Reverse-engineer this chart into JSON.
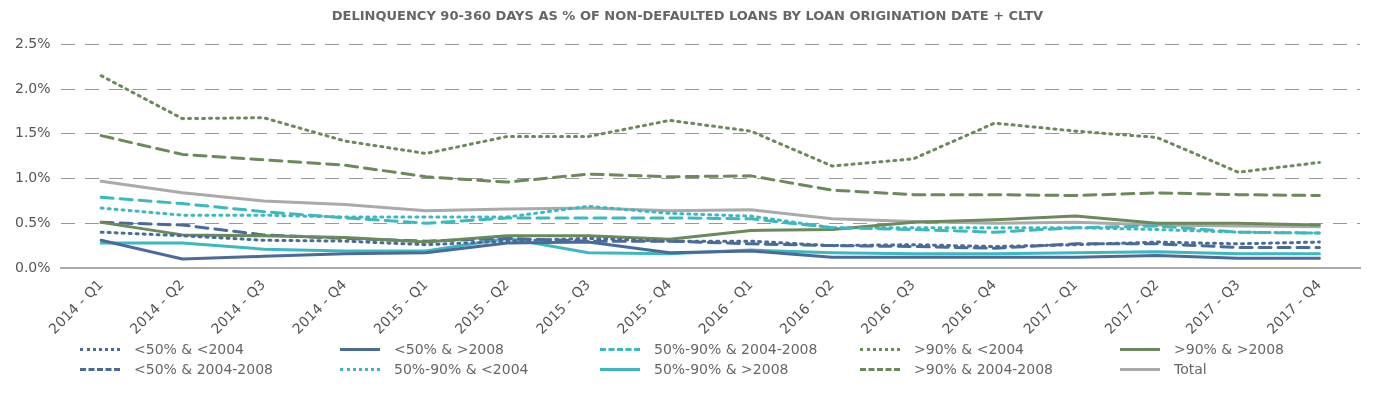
{
  "chart_data": {
    "type": "line",
    "title": "DELINQUENCY 90-360 DAYS AS % OF NON-DEFAULTED LOANS BY LOAN ORIGINATION DATE + CLTV",
    "categories": [
      "2014 - Q1",
      "2014 - Q2",
      "2014 - Q3",
      "2014 - Q4",
      "2015 - Q1",
      "2015 - Q2",
      "2015 - Q3",
      "2015 - Q4",
      "2016 - Q1",
      "2016 - Q2",
      "2016 - Q3",
      "2016 - Q4",
      "2017 - Q1",
      "2017 - Q2",
      "2017 - Q3",
      "2017 - Q4"
    ],
    "ylim": [
      0,
      2.5
    ],
    "yticks": [
      {
        "value": 0,
        "label": "0.0%"
      },
      {
        "value": 0.5,
        "label": "0.5%"
      },
      {
        "value": 1,
        "label": "1.0%"
      },
      {
        "value": 1.5,
        "label": "1.5%"
      },
      {
        "value": 2,
        "label": "2.0%"
      },
      {
        "value": 2.5,
        "label": "2.5%"
      }
    ],
    "grid": "y",
    "legend": "bottom",
    "marker": "none",
    "series": [
      {
        "name": "<50% & <2004",
        "color": "#4a6b9a",
        "line_style": "dotted",
        "values": [
          0.4,
          0.36,
          0.31,
          0.3,
          0.26,
          0.3,
          0.33,
          0.3,
          0.3,
          0.25,
          0.26,
          0.24,
          0.26,
          0.29,
          0.27,
          0.29
        ]
      },
      {
        "name": "<50% & >2008",
        "color": "#4a6b9a",
        "line_style": "solid",
        "values": [
          0.31,
          0.1,
          0.13,
          0.16,
          0.17,
          0.28,
          0.29,
          0.17,
          0.19,
          0.12,
          0.12,
          0.12,
          0.12,
          0.14,
          0.11,
          0.11
        ]
      },
      {
        "name": "50%-90% & 2004-2008",
        "color": "#3bb8c0",
        "line_style": "dashed",
        "values": [
          0.79,
          0.72,
          0.63,
          0.56,
          0.5,
          0.56,
          0.56,
          0.56,
          0.55,
          0.45,
          0.43,
          0.4,
          0.45,
          0.47,
          0.4,
          0.39
        ]
      },
      {
        "name": ">90% & <2004",
        "color": "#6a8a5a",
        "line_style": "dotted",
        "values": [
          2.15,
          1.67,
          1.68,
          1.42,
          1.28,
          1.47,
          1.47,
          1.65,
          1.53,
          1.14,
          1.22,
          1.62,
          1.53,
          1.46,
          1.07,
          1.18
        ]
      },
      {
        "name": ">90% & >2008",
        "color": "#6a8a5a",
        "line_style": "solid",
        "values": [
          0.51,
          0.37,
          0.36,
          0.34,
          0.29,
          0.36,
          0.36,
          0.32,
          0.42,
          0.43,
          0.51,
          0.54,
          0.58,
          0.5,
          0.5,
          0.48
        ]
      },
      {
        "name": "<50% & 2004-2008",
        "color": "#4a6b9a",
        "line_style": "dashed",
        "values": [
          0.51,
          0.48,
          0.37,
          0.33,
          0.3,
          0.33,
          0.3,
          0.3,
          0.27,
          0.25,
          0.24,
          0.22,
          0.27,
          0.27,
          0.23,
          0.23
        ]
      },
      {
        "name": "50%-90% & <2004",
        "color": "#3bb8c0",
        "line_style": "dotted",
        "values": [
          0.67,
          0.59,
          0.59,
          0.57,
          0.57,
          0.57,
          0.69,
          0.61,
          0.58,
          0.45,
          0.45,
          0.45,
          0.45,
          0.43,
          0.4,
          0.39
        ]
      },
      {
        "name": "50%-90% & >2008",
        "color": "#3bb8c0",
        "line_style": "solid",
        "values": [
          0.28,
          0.28,
          0.21,
          0.19,
          0.19,
          0.33,
          0.17,
          0.16,
          0.2,
          0.17,
          0.16,
          0.16,
          0.17,
          0.18,
          0.16,
          0.16
        ]
      },
      {
        "name": ">90% & 2004-2008",
        "color": "#6a8a5a",
        "line_style": "dashed",
        "values": [
          1.48,
          1.27,
          1.21,
          1.15,
          1.02,
          0.96,
          1.05,
          1.02,
          1.03,
          0.87,
          0.82,
          0.82,
          0.81,
          0.84,
          0.82,
          0.81
        ]
      },
      {
        "name": "Total",
        "color": "#aaaaaa",
        "line_style": "solid",
        "values": [
          0.97,
          0.84,
          0.75,
          0.71,
          0.64,
          0.66,
          0.67,
          0.64,
          0.65,
          0.55,
          0.52,
          0.5,
          0.51,
          0.48,
          0.47,
          0.46
        ]
      }
    ]
  }
}
